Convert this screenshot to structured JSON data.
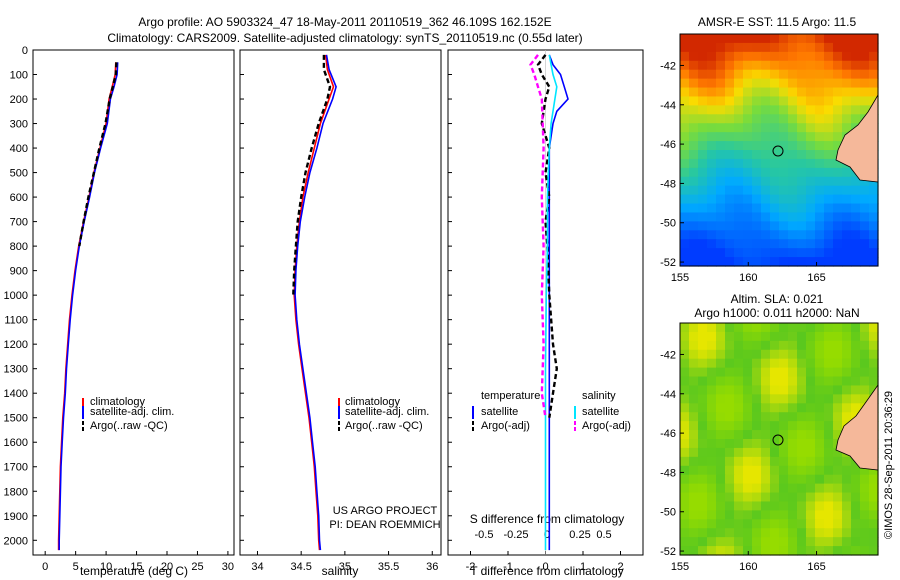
{
  "header": {
    "title_line1": "Argo profile: AO 5903324_47 18-May-2011 20110519_362 46.109S 162.152E",
    "title_line2": "Climatology: CARS2009. Satellite-adjusted climatology: synTS_20110519.nc (0.55d later)"
  },
  "colors": {
    "climatology": "#ff0000",
    "satellite": "#0000ff",
    "argo": "#000000",
    "sal_satellite": "#00e5ff",
    "sal_argo": "#ff00ff",
    "land": "#f5b89a"
  },
  "chart_data": [
    {
      "type": "line",
      "panel": "temperature",
      "xlabel": "temperature (deg C)",
      "xlim": [
        -2,
        31
      ],
      "ylim": [
        2060,
        0
      ],
      "x_ticks": [
        0,
        5,
        10,
        15,
        20,
        25,
        30
      ],
      "y_ticks": [
        0,
        100,
        200,
        300,
        400,
        500,
        600,
        700,
        800,
        900,
        1000,
        1100,
        1200,
        1300,
        1400,
        1500,
        1600,
        1700,
        1800,
        1900,
        2000
      ],
      "legend": [
        "climatology",
        "satellite-adj. clim.",
        "Argo(..raw -QC)"
      ],
      "series": [
        {
          "name": "climatology",
          "color_key": "climatology",
          "dash": false,
          "points": [
            [
              11.6,
              50
            ],
            [
              11.5,
              100
            ],
            [
              11.0,
              150
            ],
            [
              10.5,
              200
            ],
            [
              10.0,
              300
            ],
            [
              9.0,
              400
            ],
            [
              8.0,
              500
            ],
            [
              7.2,
              600
            ],
            [
              6.3,
              700
            ],
            [
              5.5,
              800
            ],
            [
              4.9,
              900
            ],
            [
              4.4,
              1000
            ],
            [
              4.0,
              1100
            ],
            [
              3.7,
              1200
            ],
            [
              3.4,
              1300
            ],
            [
              3.2,
              1400
            ],
            [
              2.9,
              1500
            ],
            [
              2.7,
              1600
            ],
            [
              2.5,
              1700
            ],
            [
              2.4,
              1800
            ],
            [
              2.3,
              1900
            ],
            [
              2.2,
              2000
            ],
            [
              2.2,
              2040
            ]
          ]
        },
        {
          "name": "satellite-adj. clim.",
          "color_key": "satellite",
          "dash": false,
          "points": [
            [
              11.9,
              50
            ],
            [
              11.8,
              100
            ],
            [
              11.3,
              150
            ],
            [
              10.7,
              200
            ],
            [
              10.2,
              300
            ],
            [
              9.1,
              400
            ],
            [
              8.1,
              500
            ],
            [
              7.3,
              600
            ],
            [
              6.4,
              700
            ],
            [
              5.6,
              800
            ],
            [
              5.0,
              900
            ],
            [
              4.5,
              1000
            ],
            [
              4.1,
              1100
            ],
            [
              3.8,
              1200
            ],
            [
              3.5,
              1300
            ],
            [
              3.3,
              1400
            ],
            [
              3.0,
              1500
            ],
            [
              2.8,
              1600
            ],
            [
              2.6,
              1700
            ],
            [
              2.5,
              1800
            ],
            [
              2.4,
              1900
            ],
            [
              2.3,
              2000
            ],
            [
              2.3,
              2040
            ]
          ]
        },
        {
          "name": "Argo(..raw -QC)",
          "color_key": "argo",
          "dash": true,
          "points": [
            [
              11.7,
              50
            ],
            [
              11.6,
              100
            ],
            [
              11.1,
              150
            ],
            [
              10.6,
              200
            ],
            [
              9.9,
              300
            ],
            [
              8.9,
              400
            ],
            [
              8.0,
              500
            ],
            [
              7.1,
              600
            ],
            [
              6.3,
              700
            ],
            [
              5.6,
              800
            ]
          ]
        }
      ]
    },
    {
      "type": "line",
      "panel": "salinity",
      "xlabel": "salinity",
      "xlim": [
        33.8,
        36.1
      ],
      "ylim": [
        2060,
        0
      ],
      "x_ticks": [
        34,
        34.5,
        35,
        35.5,
        36
      ],
      "legend": [
        "climatology",
        "satellite-adj. clim.",
        "Argo(..raw -QC)"
      ],
      "series": [
        {
          "name": "climatology",
          "color_key": "climatology",
          "dash": false,
          "points": [
            [
              34.78,
              20
            ],
            [
              34.8,
              80
            ],
            [
              34.87,
              150
            ],
            [
              34.82,
              200
            ],
            [
              34.72,
              300
            ],
            [
              34.65,
              400
            ],
            [
              34.58,
              500
            ],
            [
              34.52,
              600
            ],
            [
              34.48,
              700
            ],
            [
              34.45,
              800
            ],
            [
              34.43,
              900
            ],
            [
              34.42,
              1000
            ],
            [
              34.44,
              1100
            ],
            [
              34.47,
              1200
            ],
            [
              34.51,
              1300
            ],
            [
              34.55,
              1400
            ],
            [
              34.59,
              1500
            ],
            [
              34.62,
              1600
            ],
            [
              34.65,
              1700
            ],
            [
              34.67,
              1800
            ],
            [
              34.69,
              1900
            ],
            [
              34.7,
              2000
            ],
            [
              34.71,
              2040
            ]
          ]
        },
        {
          "name": "satellite-adj. clim.",
          "color_key": "satellite",
          "dash": false,
          "points": [
            [
              34.79,
              20
            ],
            [
              34.82,
              80
            ],
            [
              34.9,
              150
            ],
            [
              34.86,
              200
            ],
            [
              34.75,
              300
            ],
            [
              34.68,
              400
            ],
            [
              34.6,
              500
            ],
            [
              34.54,
              600
            ],
            [
              34.49,
              700
            ],
            [
              34.46,
              800
            ],
            [
              34.44,
              900
            ],
            [
              34.43,
              1000
            ],
            [
              34.45,
              1100
            ],
            [
              34.48,
              1200
            ],
            [
              34.52,
              1300
            ],
            [
              34.56,
              1400
            ],
            [
              34.6,
              1500
            ],
            [
              34.63,
              1600
            ],
            [
              34.66,
              1700
            ],
            [
              34.68,
              1800
            ],
            [
              34.7,
              1900
            ],
            [
              34.71,
              2000
            ],
            [
              34.72,
              2040
            ]
          ]
        },
        {
          "name": "Argo(..raw -QC)",
          "color_key": "argo",
          "dash": true,
          "points": [
            [
              34.76,
              20
            ],
            [
              34.76,
              80
            ],
            [
              34.83,
              150
            ],
            [
              34.8,
              200
            ],
            [
              34.7,
              300
            ],
            [
              34.62,
              400
            ],
            [
              34.55,
              500
            ],
            [
              34.5,
              600
            ],
            [
              34.46,
              700
            ],
            [
              34.44,
              800
            ],
            [
              34.42,
              900
            ],
            [
              34.41,
              1000
            ]
          ]
        }
      ]
    },
    {
      "type": "line",
      "panel": "differences",
      "xlabel": "T difference from climatology",
      "xlabel2": "S difference from climatology",
      "xlim": [
        -2.6,
        2.6
      ],
      "ylim": [
        2060,
        0
      ],
      "x_ticks_T": [
        -2,
        -1,
        0,
        1,
        2
      ],
      "x_ticks_S_labels": [
        "-0.5",
        "-0.25",
        "0",
        "0.25",
        "0.5"
      ],
      "legend_titles": [
        "temperature",
        "salinity"
      ],
      "legend": [
        "satellite",
        "Argo(-adj)",
        "satellite",
        "Argo(-adj)"
      ],
      "series": [
        {
          "name": "temperature satellite",
          "color_key": "satellite",
          "dash": false,
          "points": [
            [
              0.1,
              20
            ],
            [
              0.2,
              60
            ],
            [
              0.4,
              100
            ],
            [
              0.5,
              150
            ],
            [
              0.6,
              200
            ],
            [
              0.3,
              250
            ],
            [
              0.2,
              300
            ],
            [
              0.1,
              400
            ],
            [
              0.1,
              500
            ],
            [
              0.1,
              700
            ],
            [
              0.1,
              900
            ],
            [
              0.1,
              1100
            ],
            [
              0.1,
              1300
            ],
            [
              0.1,
              1500
            ],
            [
              0.1,
              1700
            ],
            [
              0.1,
              1900
            ],
            [
              0.1,
              2040
            ]
          ]
        },
        {
          "name": "temperature Argo(-adj)",
          "color_key": "argo",
          "dash": true,
          "points": [
            [
              0.0,
              20
            ],
            [
              -0.2,
              60
            ],
            [
              -0.1,
              100
            ],
            [
              0.1,
              150
            ],
            [
              0.0,
              200
            ],
            [
              -0.1,
              300
            ],
            [
              0.1,
              400
            ],
            [
              0.0,
              500
            ],
            [
              0.1,
              600
            ],
            [
              0.0,
              700
            ],
            [
              0.05,
              800
            ],
            [
              0.1,
              1000
            ],
            [
              0.2,
              1200
            ],
            [
              0.3,
              1300
            ],
            [
              0.2,
              1400
            ],
            [
              0.1,
              1500
            ]
          ]
        },
        {
          "name": "salinity satellite",
          "color_key": "sal_satellite",
          "dash": false,
          "points": [
            [
              0.1,
              20
            ],
            [
              0.15,
              60
            ],
            [
              0.2,
              100
            ],
            [
              0.3,
              150
            ],
            [
              0.25,
              200
            ],
            [
              0.15,
              300
            ],
            [
              0.1,
              400
            ],
            [
              0.05,
              600
            ],
            [
              0.05,
              800
            ],
            [
              0.02,
              1000
            ],
            [
              0.0,
              1300
            ],
            [
              0.0,
              1600
            ],
            [
              0.0,
              1900
            ],
            [
              0.0,
              2040
            ]
          ]
        },
        {
          "name": "salinity Argo(-adj)",
          "color_key": "sal_argo",
          "dash": true,
          "points": [
            [
              -0.2,
              20
            ],
            [
              -0.4,
              60
            ],
            [
              -0.3,
              100
            ],
            [
              -0.2,
              150
            ],
            [
              -0.1,
              200
            ],
            [
              -0.05,
              400
            ],
            [
              -0.1,
              600
            ],
            [
              -0.05,
              800
            ],
            [
              -0.1,
              1000
            ],
            [
              -0.05,
              1200
            ],
            [
              -0.1,
              1400
            ],
            [
              0.0,
              1500
            ]
          ]
        }
      ]
    }
  ],
  "maps": [
    {
      "title_lines": [
        "AMSR-E SST: 11.5 Argo: 11.5"
      ],
      "field": "sst",
      "xlim": [
        155,
        169.5
      ],
      "ylim": [
        -52.2,
        -40.4
      ],
      "x_ticks": [
        155,
        160,
        165
      ],
      "y_ticks": [
        -42,
        -44,
        -46,
        -48,
        -50,
        -52
      ],
      "argo_lon": 162.152,
      "argo_lat": -46.109
    },
    {
      "title_lines": [
        "Altim. SLA: 0.021",
        "Argo h1000: 0.011 h2000: NaN"
      ],
      "field": "sla",
      "xlim": [
        155,
        169.5
      ],
      "ylim": [
        -52.2,
        -40.4
      ],
      "x_ticks": [
        155,
        160,
        165
      ],
      "y_ticks": [
        -42,
        -44,
        -46,
        -48,
        -50,
        -52
      ],
      "argo_lon": 162.152,
      "argo_lat": -46.109
    }
  ],
  "annotations": {
    "project_line1": "US ARGO PROJECT",
    "project_line2": "PI: DEAN ROEMMICH",
    "credit": "©IMOS 28-Sep-2011 20:36:29"
  }
}
